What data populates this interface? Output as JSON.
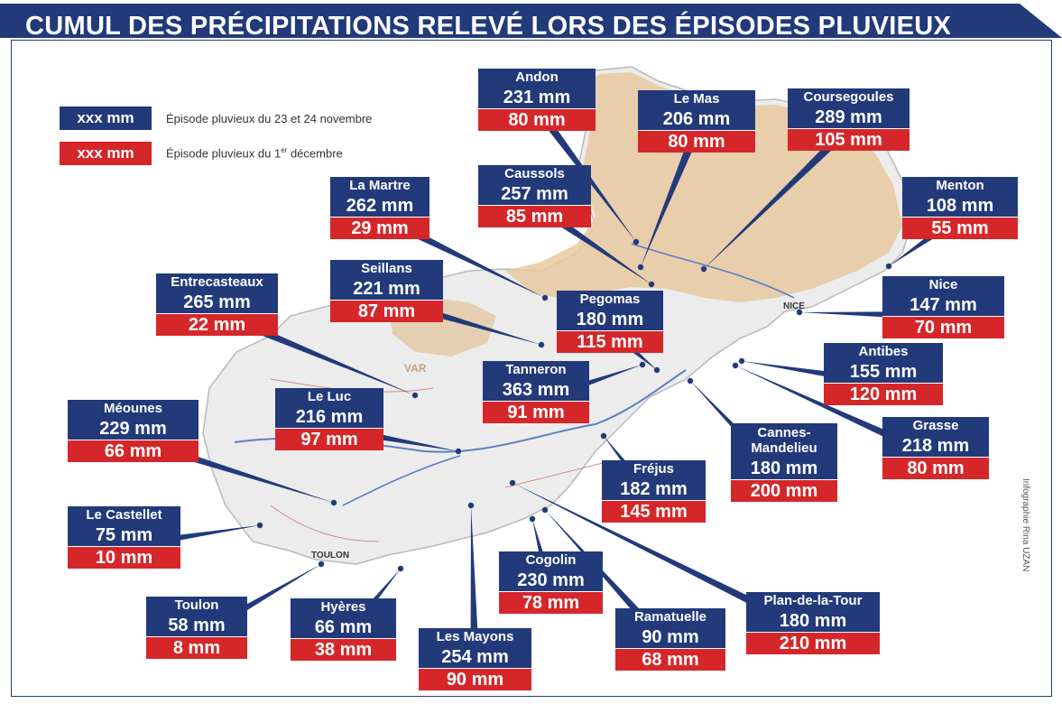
{
  "title": "CUMUL DES PRÉCIPITATIONS RELEVÉ LORS DES ÉPISODES PLUVIEUX",
  "colors": {
    "episode1": "#223a7a",
    "episode2": "#d5272a",
    "land": "#ececec",
    "relief": "#e8c9a0",
    "sea": "#ffffff"
  },
  "legend": [
    {
      "value": "xxx mm",
      "text": "Épisode  pluvieux du 23 et 24 novembre"
    },
    {
      "value": "xxx mm",
      "text_main": "Épisode  pluvieux du 1",
      "text_sup": "er",
      "text_end": " décembre"
    }
  ],
  "stations": [
    {
      "name": "Andon",
      "v1": "231 mm",
      "v2": "80 mm"
    },
    {
      "name": "Le Mas",
      "v1": "206 mm",
      "v2": "80 mm"
    },
    {
      "name": "Coursegoules",
      "v1": "289 mm",
      "v2": "105 mm"
    },
    {
      "name": "Menton",
      "v1": "108 mm",
      "v2": "55 mm"
    },
    {
      "name": "Caussols",
      "v1": "257 mm",
      "v2": "85 mm"
    },
    {
      "name": "La Martre",
      "v1": "262 mm",
      "v2": "29 mm"
    },
    {
      "name": "Seillans",
      "v1": "221 mm",
      "v2": "87 mm"
    },
    {
      "name": "Entrecasteaux",
      "v1": "265 mm",
      "v2": "22 mm"
    },
    {
      "name": "Pegomas",
      "v1": "180 mm",
      "v2": "115 mm"
    },
    {
      "name": "Nice",
      "v1": "147 mm",
      "v2": "70 mm"
    },
    {
      "name": "Antibes",
      "v1": "155 mm",
      "v2": "120 mm"
    },
    {
      "name": "Tanneron",
      "v1": "363 mm",
      "v2": "91 mm"
    },
    {
      "name": "Le Luc",
      "v1": "216 mm",
      "v2": "97 mm"
    },
    {
      "name": "Méounes",
      "v1": "229 mm",
      "v2": "66 mm"
    },
    {
      "name": "Grasse",
      "v1": "218 mm",
      "v2": "80 mm"
    },
    {
      "name": "Cannes-\nMandelieu",
      "v1": "180 mm",
      "v2": "200 mm"
    },
    {
      "name": "Fréjus",
      "v1": "182 mm",
      "v2": "145 mm"
    },
    {
      "name": "Le Castellet",
      "v1": "75 mm",
      "v2": "10 mm"
    },
    {
      "name": "Cogolin",
      "v1": "230 mm",
      "v2": "78 mm"
    },
    {
      "name": "Toulon",
      "v1": "58 mm",
      "v2": "8 mm"
    },
    {
      "name": "Hyères",
      "v1": "66 mm",
      "v2": "38 mm"
    },
    {
      "name": "Ramatuelle",
      "v1": "90 mm",
      "v2": "68 mm"
    },
    {
      "name": "Plan-de-la-Tour",
      "v1": "180 mm",
      "v2": "210 mm"
    },
    {
      "name": "Les Mayons",
      "v1": "254 mm",
      "v2": "90 mm"
    }
  ],
  "credit": "Infographie Rina UZAN",
  "map_places": [
    "NICE",
    "TOULON",
    "VAR"
  ]
}
